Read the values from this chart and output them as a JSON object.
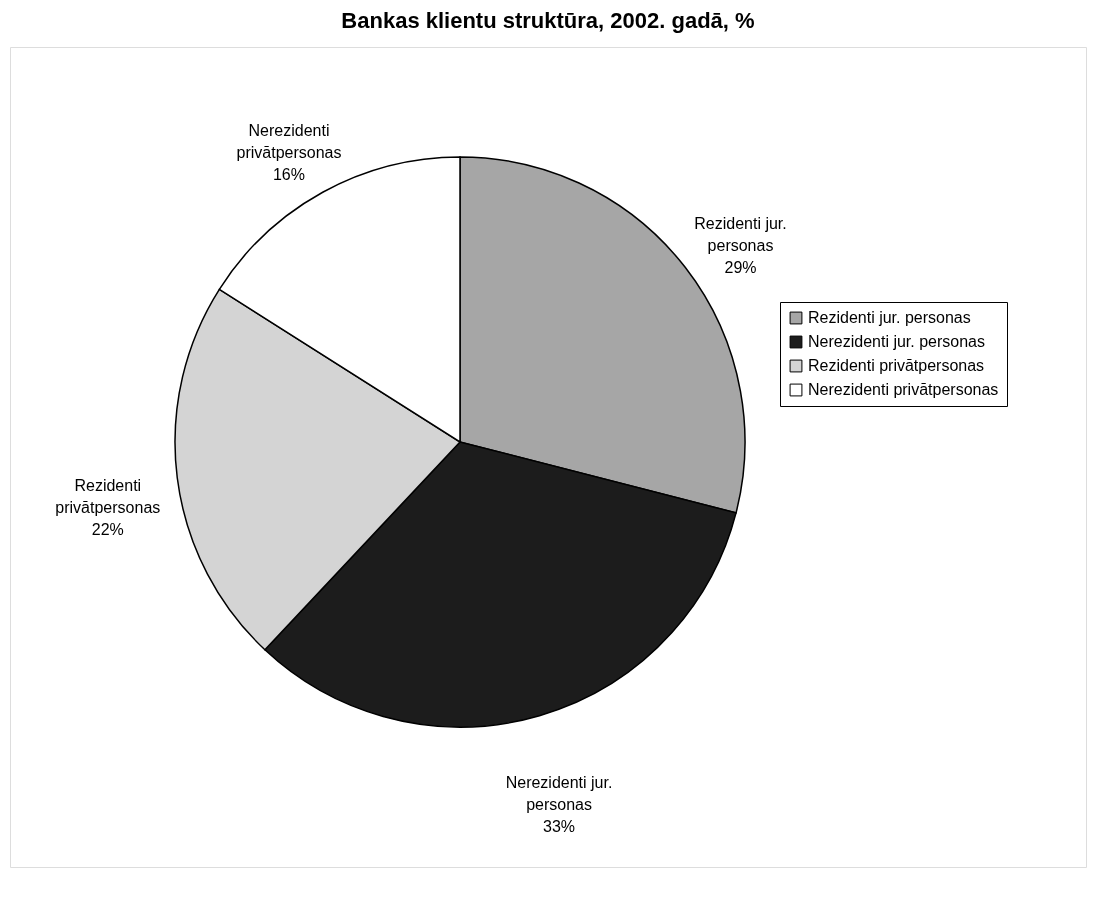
{
  "chart_data": {
    "type": "pie",
    "title": "Bankas klientu struktūra,  2002. gadā, %",
    "categories": [
      "Rezidenti jur. personas",
      "Nerezidenti jur. personas",
      "Rezidenti privātpersonas",
      "Nerezidenti privātpersonas"
    ],
    "values": [
      29,
      33,
      22,
      16
    ],
    "colors": [
      "#a6a6a6",
      "#1c1c1c",
      "#d4d4d4",
      "#ffffff"
    ],
    "value_labels": [
      "29%",
      "33%",
      "22%",
      "16%"
    ],
    "legend": "right"
  }
}
